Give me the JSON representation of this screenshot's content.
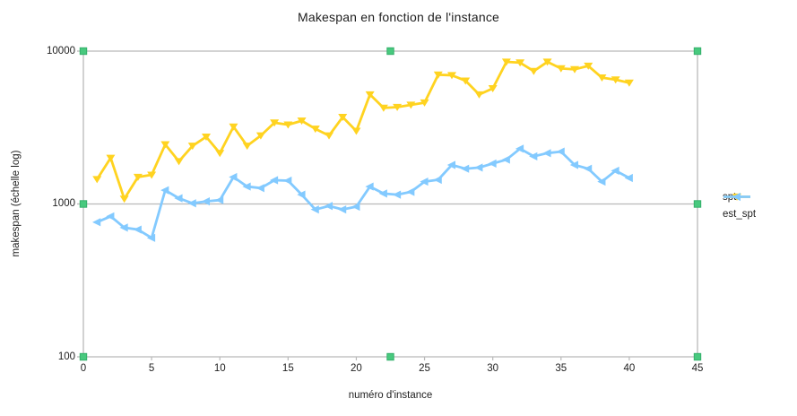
{
  "chart_data": {
    "type": "line",
    "title": "Makespan en fonction de l'instance",
    "xlabel": "numéro d'instance",
    "ylabel": "makespan (échelle log)",
    "x": [
      1,
      2,
      3,
      4,
      5,
      6,
      7,
      8,
      9,
      10,
      11,
      12,
      13,
      14,
      15,
      16,
      17,
      18,
      19,
      20,
      21,
      22,
      23,
      24,
      25,
      26,
      27,
      28,
      29,
      30,
      31,
      32,
      33,
      34,
      35,
      36,
      37,
      38,
      39,
      40
    ],
    "series": [
      {
        "name": "spt",
        "color": "#FFD320",
        "marker": "triangle-down",
        "values": [
          1450,
          2000,
          1080,
          1500,
          1550,
          2450,
          1900,
          2400,
          2750,
          2150,
          3200,
          2400,
          2800,
          3400,
          3300,
          3500,
          3100,
          2800,
          3700,
          3000,
          5200,
          4250,
          4300,
          4450,
          4600,
          7000,
          6950,
          6400,
          5200,
          5700,
          8500,
          8400,
          7400,
          8500,
          7700,
          7600,
          8000,
          6700,
          6500,
          6200
        ]
      },
      {
        "name": "est_spt",
        "color": "#83CAFF",
        "marker": "triangle-left",
        "values": [
          760,
          830,
          700,
          680,
          600,
          1230,
          1090,
          1010,
          1040,
          1060,
          1500,
          1300,
          1270,
          1430,
          1420,
          1150,
          920,
          970,
          920,
          960,
          1300,
          1170,
          1150,
          1200,
          1400,
          1440,
          1800,
          1700,
          1730,
          1840,
          1950,
          2300,
          2050,
          2150,
          2200,
          1800,
          1700,
          1400,
          1650,
          1480
        ]
      }
    ],
    "xlim": [
      0,
      45
    ],
    "ylim": [
      100,
      10000
    ],
    "x_ticks": [
      0,
      5,
      10,
      15,
      20,
      25,
      30,
      35,
      40,
      45
    ],
    "y_ticks": [
      100,
      1000,
      10000
    ],
    "y_scale": "log",
    "grid": "horizontal-major",
    "legend_position": "right-middle"
  },
  "ui": {
    "selected": true,
    "selection_handle_color": "#48C97E",
    "selection_handle_border": "#35B06B",
    "grid_color": "#B9B9B9",
    "text_color": "#1E1E1E",
    "background": "#FFFFFF"
  }
}
